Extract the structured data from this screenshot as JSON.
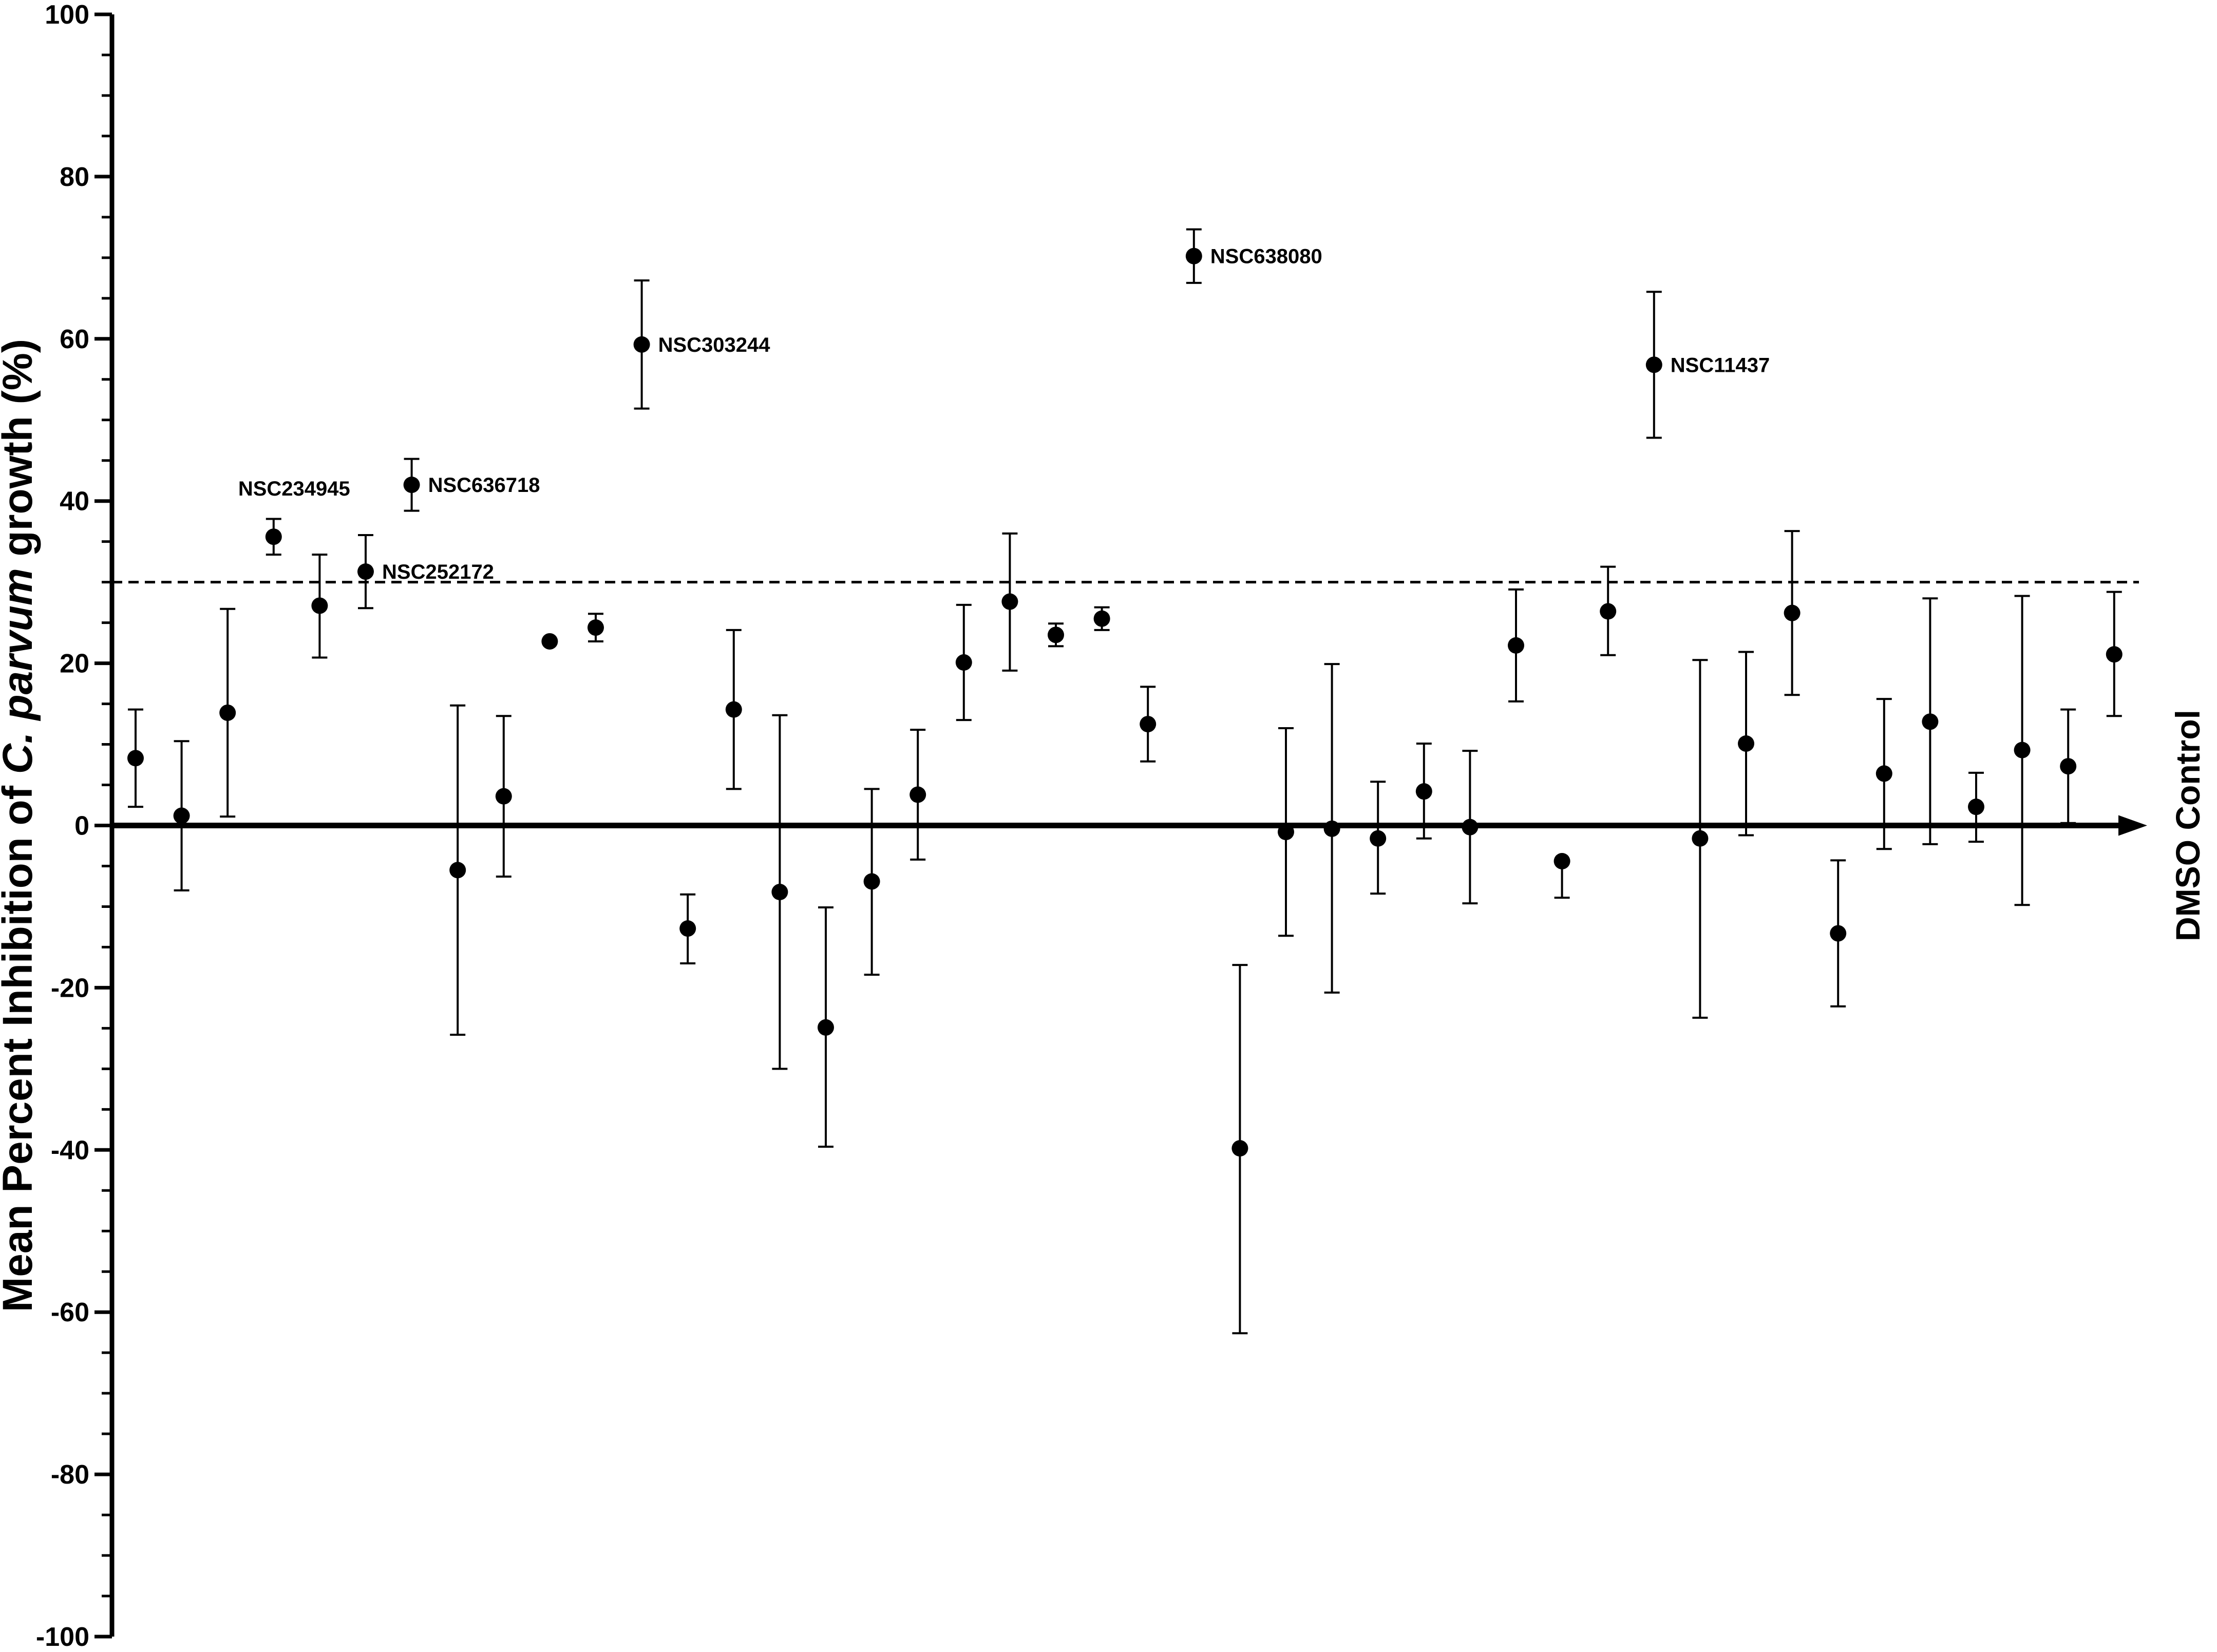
{
  "chart_data": {
    "type": "scatter",
    "ylabel_parts": [
      "Mean Percent Inhibition of ",
      "C. parvum",
      " growth (%)"
    ],
    "control_label": "DMSO Control",
    "ylim": [
      -100,
      100
    ],
    "yticks": [
      -100,
      -80,
      -60,
      -40,
      -20,
      0,
      20,
      40,
      60,
      80,
      100
    ],
    "ytick_labels": [
      "-100",
      "-80",
      "-60",
      "-40",
      "-20",
      "0",
      "20",
      "40",
      "60",
      "80",
      "100"
    ],
    "threshold": 30,
    "grid": false,
    "legend": "none",
    "marker_color": "#000000",
    "series": [
      {
        "x": [
          1,
          2,
          3,
          4,
          5,
          6,
          7,
          8,
          9,
          10,
          11,
          12,
          13,
          14,
          15,
          16,
          17,
          18,
          19,
          20,
          21,
          22,
          23,
          24,
          25,
          26,
          27,
          28,
          29,
          30,
          31,
          32,
          33,
          34,
          35,
          36,
          37,
          38,
          39,
          40,
          41,
          42,
          43,
          44,
          45
        ],
        "y": [
          8.3,
          1.2,
          13.9,
          35.6,
          27.1,
          31.3,
          42.0,
          -5.5,
          3.6,
          22.7,
          24.4,
          59.3,
          -12.7,
          14.3,
          -8.2,
          -24.9,
          -6.9,
          3.8,
          20.1,
          27.6,
          23.5,
          25.5,
          12.5,
          70.2,
          -39.8,
          -0.8,
          -0.4,
          -1.6,
          4.2,
          -0.2,
          22.2,
          -4.4,
          26.4,
          56.8,
          -1.6,
          10.1,
          26.2,
          -13.3,
          6.4,
          12.8,
          2.3,
          9.3,
          7.3,
          21.1,
          null
        ],
        "y_upper": [
          14.3,
          10.4,
          26.7,
          37.8,
          33.4,
          35.8,
          45.2,
          14.8,
          13.5,
          22.7,
          26.1,
          67.2,
          -8.5,
          24.1,
          13.6,
          -10.1,
          4.5,
          11.8,
          27.2,
          36.0,
          24.9,
          26.9,
          17.1,
          73.5,
          -17.2,
          12.0,
          19.9,
          5.4,
          10.1,
          9.2,
          29.1,
          -4.4,
          31.9,
          65.8,
          20.4,
          21.4,
          36.3,
          -4.3,
          15.6,
          28.0,
          6.5,
          28.3,
          14.3,
          28.8,
          null
        ],
        "y_lower": [
          2.3,
          -8.0,
          1.1,
          33.4,
          20.7,
          26.8,
          38.8,
          -25.8,
          -6.3,
          22.7,
          22.7,
          51.4,
          -17.0,
          4.5,
          -30.0,
          -39.6,
          -18.4,
          -4.2,
          13.0,
          19.1,
          22.1,
          24.1,
          7.9,
          66.9,
          -62.6,
          -13.6,
          -20.6,
          -8.4,
          -1.6,
          -9.6,
          15.3,
          -8.9,
          21.0,
          47.8,
          -23.7,
          -1.2,
          16.1,
          -22.3,
          -2.9,
          -2.3,
          -2.0,
          -9.8,
          0.3,
          13.5,
          null
        ],
        "labels": {
          "4": "NSC234945",
          "6": "NSC252172",
          "7": "NSC636718",
          "12": "NSC303244",
          "24": "NSC638080",
          "34": "NSC11437"
        }
      }
    ]
  }
}
